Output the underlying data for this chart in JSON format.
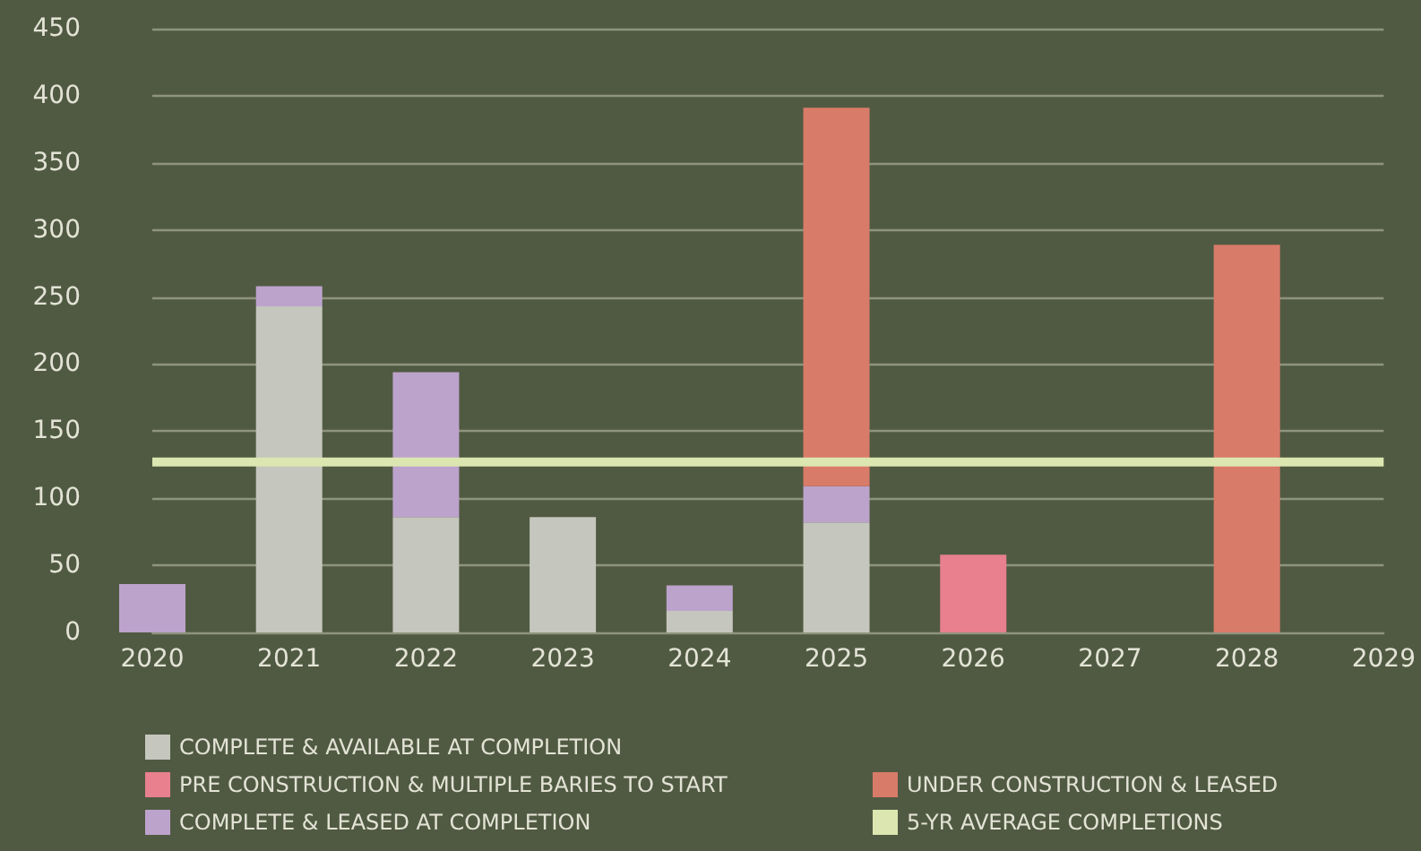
{
  "chart_data": {
    "type": "bar",
    "stacked": true,
    "categories": [
      "2020",
      "2021",
      "2022",
      "2023",
      "2024",
      "2025",
      "2026",
      "2027",
      "2028",
      "2029"
    ],
    "series": [
      {
        "name": "COMPLETE & AVAILABLE AT COMPLETION",
        "color": "#c5c6bd",
        "values": [
          null,
          243,
          86,
          86,
          16,
          82,
          null,
          null,
          null,
          null
        ]
      },
      {
        "name": "COMPLETE & LEASED AT COMPLETION",
        "color": "#bca3cc",
        "values": [
          36,
          15,
          108,
          null,
          19,
          27,
          null,
          null,
          null,
          null
        ]
      },
      {
        "name": "UNDER CONSTRUCTION & LEASED",
        "color": "#d97b69",
        "values": [
          null,
          null,
          null,
          null,
          null,
          282,
          null,
          null,
          289,
          null
        ]
      },
      {
        "name": "PRE CONSTRUCTION & MULTIPLE BARIES TO START",
        "color": "#e8808e",
        "values": [
          null,
          null,
          null,
          null,
          null,
          null,
          58,
          null,
          null,
          null
        ]
      },
      {
        "name": "5-YR AVERAGE COMPLETIONS",
        "type": "line",
        "color": "#dce6b0",
        "values": [
          127,
          127,
          127,
          127,
          127,
          127,
          127,
          127,
          127,
          127
        ]
      }
    ],
    "ylim": [
      0,
      450
    ],
    "yticks": [
      0,
      50,
      100,
      150,
      200,
      250,
      300,
      350,
      400,
      450
    ],
    "grid": "y",
    "legend": "bottom",
    "marker": "none"
  }
}
